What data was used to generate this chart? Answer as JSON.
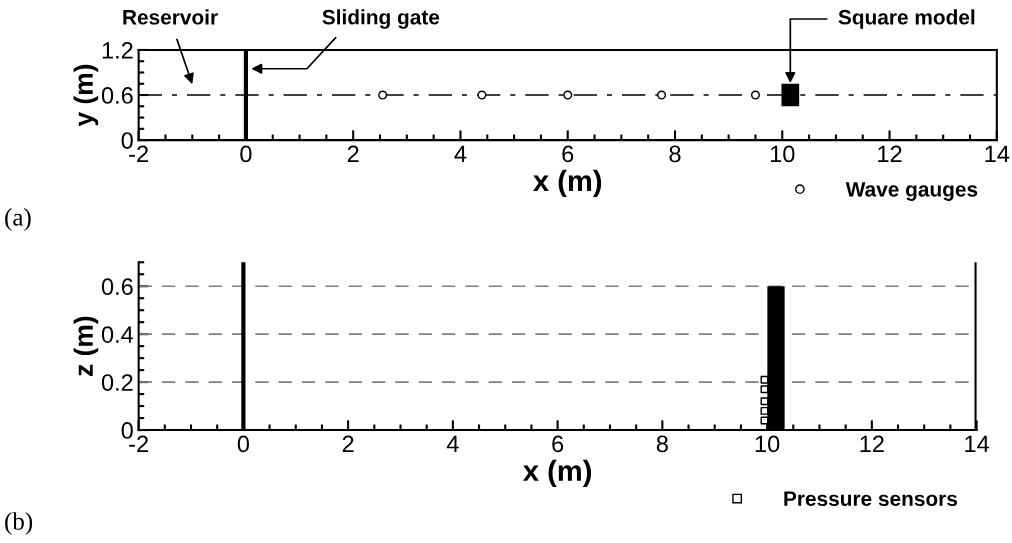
{
  "chart_data": [
    {
      "type": "scatter",
      "xlabel": "x (m)",
      "ylabel": "y (m)",
      "xlim": [
        -2,
        14
      ],
      "ylim": [
        0,
        1.2
      ],
      "xticks": [
        -2,
        0,
        2,
        4,
        6,
        8,
        10,
        12,
        14
      ],
      "yticks": [
        0,
        0.6,
        1.2
      ],
      "series": [
        {
          "name": "Wave gauges",
          "marker": "circle",
          "color": "#000000",
          "x": [
            2.55,
            4.4,
            6.0,
            7.75,
            9.5
          ],
          "values": [
            0.6,
            0.6,
            0.6,
            0.6,
            0.6
          ]
        },
        {
          "type": "bar",
          "color": "#000000",
          "x": [
            10.15
          ],
          "base": [
            0.45
          ],
          "values": [
            0.3
          ]
        }
      ],
      "ref_lines": [
        {
          "axis": "y",
          "value": 0.6,
          "color": "#000000",
          "line_style": "dashdot"
        },
        {
          "axis": "x",
          "value": 0,
          "color": "#000000",
          "line_style": "solid"
        }
      ],
      "legend": "bottom right",
      "annotations": [
        "Reservoir",
        {
          "text": "Sliding gate",
          "x": 0.1,
          "y": 0.95
        },
        {
          "text": "Square model",
          "x": 10.15,
          "y": 0.76
        },
        "(a)"
      ]
    },
    {
      "type": "scatter",
      "xlabel": "x (m)",
      "ylabel": "z (m)",
      "xlim": [
        -2,
        14
      ],
      "ylim": [
        0,
        0.7
      ],
      "xticks": [
        -2,
        0,
        2,
        4,
        6,
        8,
        10,
        12,
        14
      ],
      "yticks": [
        0,
        0.2,
        0.4,
        0.6
      ],
      "series": [
        {
          "name": "Pressure sensors",
          "marker": "square",
          "color": "#000000",
          "x": [
            9.95,
            9.95,
            9.95,
            9.95,
            9.95
          ],
          "values": [
            0.04,
            0.08,
            0.12,
            0.17,
            0.21
          ]
        },
        {
          "type": "bar",
          "color": "#000000",
          "x": [
            10.17
          ],
          "base": [
            0
          ],
          "values": [
            0.6
          ]
        }
      ],
      "ref_lines": [
        {
          "axis": "y",
          "value": 0.2,
          "color": "#808080",
          "line_style": "dashed"
        },
        {
          "axis": "y",
          "value": 0.4,
          "color": "#808080",
          "line_style": "dashed"
        },
        {
          "axis": "y",
          "value": 0.6,
          "color": "#808080",
          "line_style": "dashed"
        },
        {
          "axis": "x",
          "value": 0,
          "color": "#000000",
          "line_style": "solid"
        },
        {
          "axis": "x",
          "value": 14,
          "color": "#000000",
          "line_style": "solid"
        }
      ],
      "legend": "bottom right",
      "annotations": [
        "(b)"
      ]
    }
  ]
}
